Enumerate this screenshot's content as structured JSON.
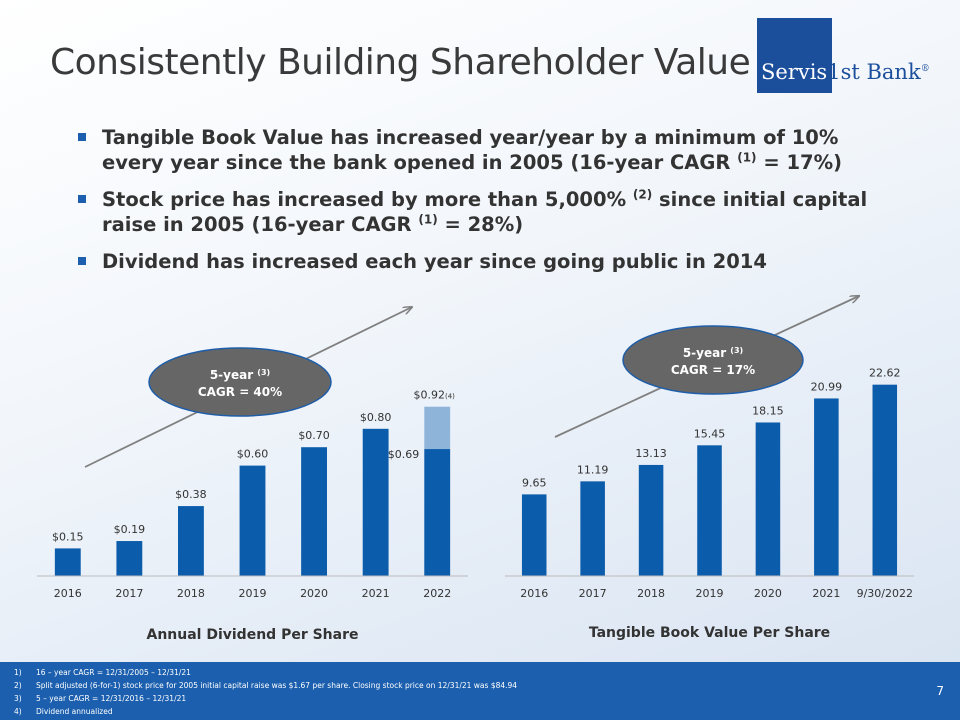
{
  "title": "Consistently Building Shareholder Value",
  "logo": {
    "text_white": "Servis",
    "text_blue": "1st Bank",
    "mark": "®"
  },
  "bullets": [
    {
      "text": "Tangible Book Value has increased year/year by a minimum of 10% every year since the bank opened in 2005 (16-year CAGR ",
      "sup": "(1)",
      "after": " = 17%)"
    },
    {
      "text": "Stock price has increased by more than 5,000% ",
      "sup": "(2)",
      "after": " since initial capital raise in 2005 (16-year CAGR ",
      "sup2": "(1)",
      "after2": " = 28%)"
    },
    {
      "text": "Dividend has increased each year since going public in 2014",
      "sup": "",
      "after": ""
    }
  ],
  "chart_data": [
    {
      "type": "bar",
      "title": "Annual Dividend Per Share",
      "categories": [
        "2016",
        "2017",
        "2018",
        "2019",
        "2020",
        "2021",
        "2022"
      ],
      "values": [
        0.15,
        0.19,
        0.38,
        0.6,
        0.7,
        0.8,
        0.92
      ],
      "labels": [
        "$0.15",
        "$0.19",
        "$0.38",
        "$0.60",
        "$0.70",
        "$0.80",
        "$0.92"
      ],
      "annotation_sup": "(4)",
      "stacked_last": {
        "base": 0.69,
        "base_label": "$0.69",
        "increment": 0.23
      },
      "callout": {
        "line1": "5-year ",
        "sup": "(3)",
        "line2": "CAGR = 40%"
      },
      "ylim": [
        0,
        1.0
      ],
      "colors": {
        "bar": "#0b5cab",
        "increment": "#8fb4d9"
      }
    },
    {
      "type": "bar",
      "title": "Tangible Book Value Per Share",
      "categories": [
        "2016",
        "2017",
        "2018",
        "2019",
        "2020",
        "2021",
        "9/30/2022"
      ],
      "values": [
        9.65,
        11.19,
        13.13,
        15.45,
        18.15,
        20.99,
        22.62
      ],
      "labels": [
        "9.65",
        "11.19",
        "13.13",
        "15.45",
        "18.15",
        "20.99",
        "22.62"
      ],
      "callout": {
        "line1": "5-year ",
        "sup": "(3)",
        "line2": "CAGR = 17%"
      },
      "ylim": [
        0,
        24
      ],
      "colors": {
        "bar": "#0b5cab"
      }
    }
  ],
  "footnotes": [
    {
      "num": "1)",
      "text": "16 – year CAGR = 12/31/2005 – 12/31/21"
    },
    {
      "num": "2)",
      "text": "Split adjusted (6-for-1) stock price for 2005 initial capital raise was $1.67 per share. Closing stock price on 12/31/21 was $84.94"
    },
    {
      "num": "3)",
      "text": "5 – year CAGR = 12/31/2016 – 12/31/21"
    },
    {
      "num": "4)",
      "text": "Dividend annualized"
    }
  ],
  "page_number": "7"
}
